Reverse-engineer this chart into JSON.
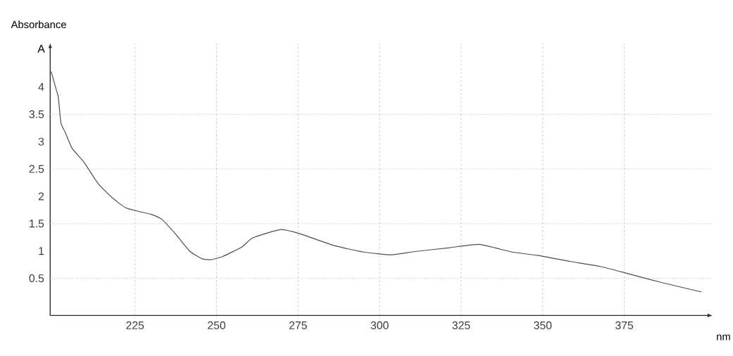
{
  "chart_data": {
    "type": "line",
    "ylabel": "Absorbance",
    "xlabel": "nm",
    "annotations": [
      "A"
    ],
    "xlim": [
      199,
      402
    ],
    "ylim": [
      -0.18,
      4.8
    ],
    "xticks": [
      225,
      250,
      275,
      300,
      325,
      350,
      375
    ],
    "yticks": [
      0.5,
      1,
      1.5,
      2,
      2.5,
      3,
      3.5,
      4
    ],
    "grid": "x",
    "marker": "none",
    "line_style": "solid",
    "ref_lines": [
      {
        "axis": "y",
        "value": 0.5,
        "color": "#8fb0c0",
        "line_style": "dotted"
      },
      {
        "axis": "y",
        "value": 1.5,
        "color": "#8fb0c0",
        "line_style": "dotted"
      },
      {
        "axis": "y",
        "value": 2.5,
        "color": "#8fb0c0",
        "line_style": "dotted"
      },
      {
        "axis": "y",
        "value": 3.5,
        "color": "#8fb0c0",
        "line_style": "dotted"
      }
    ],
    "x": [
      199.3,
      200.9,
      201.5,
      202.3,
      203.6,
      205.7,
      209.4,
      213.6,
      217.9,
      222.1,
      226.4,
      230,
      233.4,
      237.7,
      241.9,
      245.5,
      248.3,
      251.9,
      257.7,
      261.1,
      269.6,
      275.3,
      286,
      295.1,
      303.6,
      310.9,
      321.5,
      330.6,
      340.6,
      348.3,
      358.3,
      367.4,
      375.9,
      386.6,
      398.7
    ],
    "series": [
      {
        "color": "#4a4a5c",
        "values": [
          4.28,
          3.94,
          3.81,
          3.34,
          3.17,
          2.88,
          2.62,
          2.24,
          1.98,
          1.79,
          1.72,
          1.67,
          1.57,
          1.29,
          0.99,
          0.86,
          0.84,
          0.9,
          1.07,
          1.24,
          1.39,
          1.32,
          1.1,
          0.98,
          0.93,
          0.99,
          1.06,
          1.12,
          0.98,
          0.92,
          0.81,
          0.72,
          0.59,
          0.42,
          0.25
        ]
      }
    ]
  }
}
